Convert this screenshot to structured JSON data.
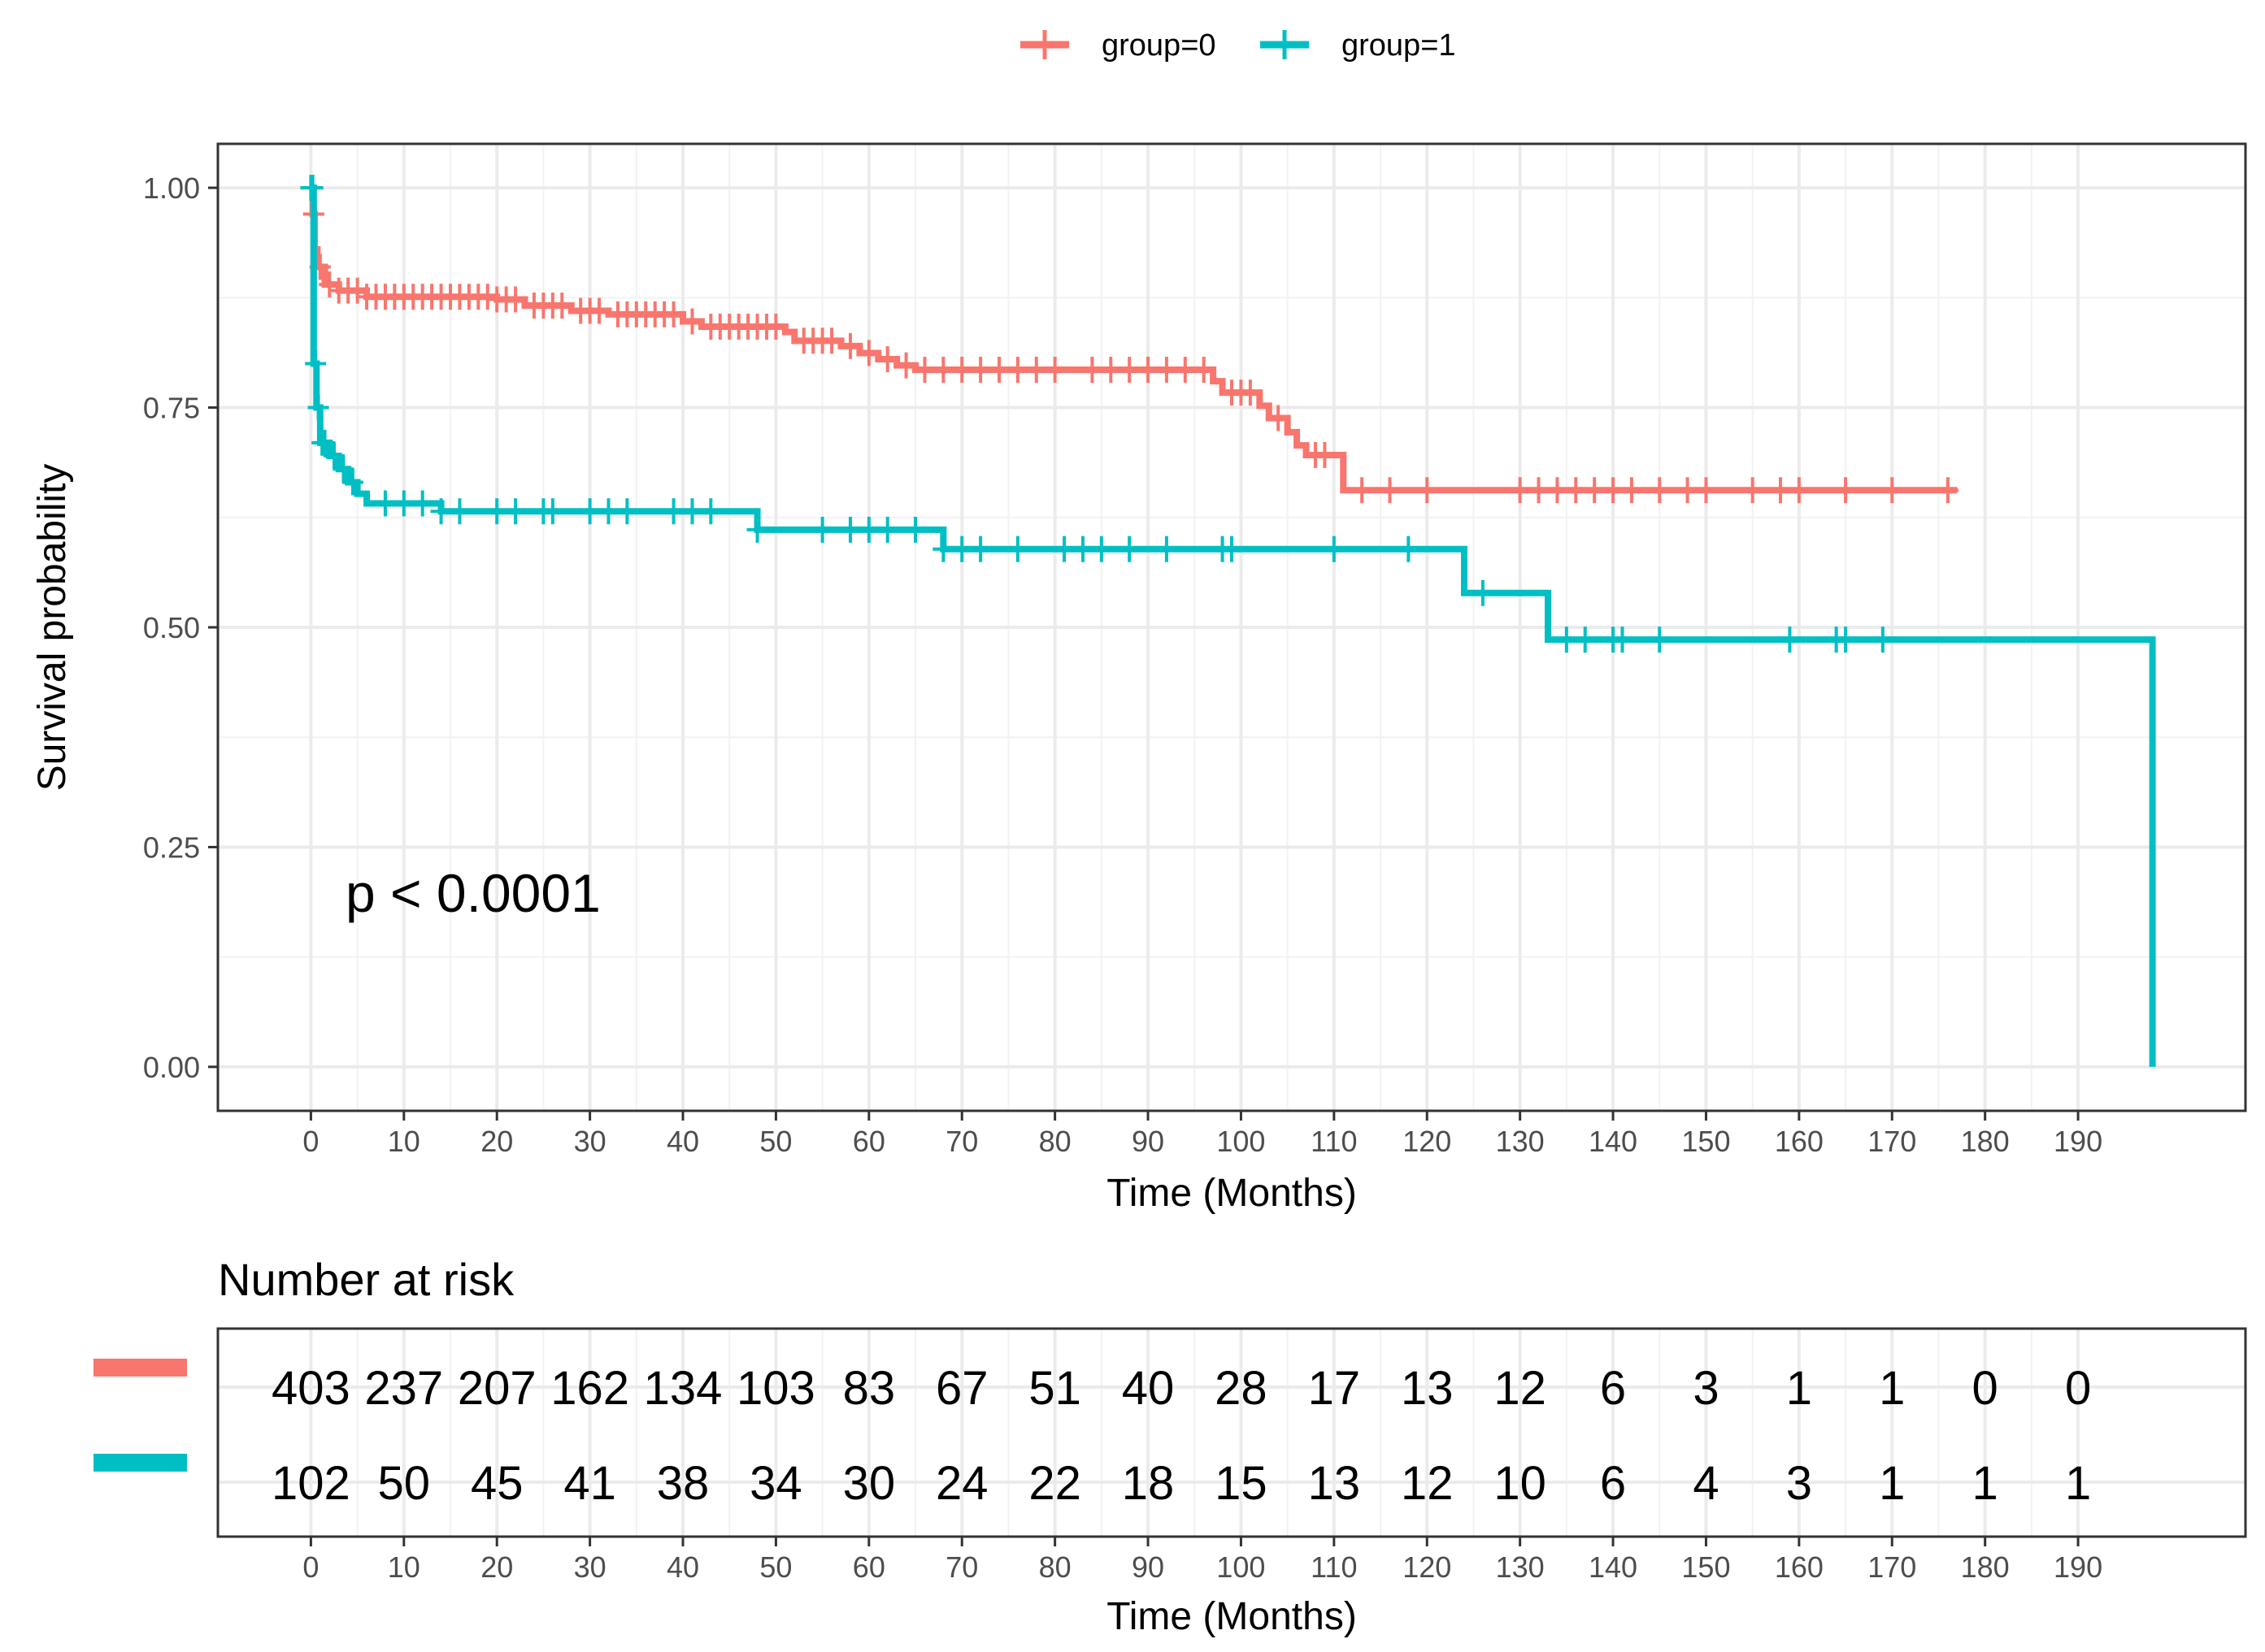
{
  "chart_data": {
    "type": "line",
    "subtype": "kaplan-meier",
    "xlabel": "Time (Months)",
    "ylabel": "Survival probability",
    "xlim": [
      -10,
      208
    ],
    "ylim": [
      -0.05,
      1.05
    ],
    "x_ticks": [
      0,
      10,
      20,
      30,
      40,
      50,
      60,
      70,
      80,
      90,
      100,
      110,
      120,
      130,
      140,
      150,
      160,
      170,
      180,
      190
    ],
    "y_ticks": [
      0,
      0.25,
      0.5,
      0.75,
      1.0
    ],
    "y_tick_labels": [
      "0.00",
      "0.25",
      "0.50",
      "0.75",
      "1.00"
    ],
    "grid": true,
    "legend_position": "top",
    "annotation": "p < 0.0001",
    "series": [
      {
        "name": "group=0",
        "color": "#F8766D",
        "steps": [
          [
            0,
            1.0
          ],
          [
            0.2,
            0.97
          ],
          [
            0.4,
            0.93
          ],
          [
            0.7,
            0.91
          ],
          [
            1.5,
            0.89
          ],
          [
            3,
            0.883
          ],
          [
            6,
            0.876
          ],
          [
            20,
            0.873
          ],
          [
            23,
            0.866
          ],
          [
            28,
            0.86
          ],
          [
            32,
            0.856
          ],
          [
            40,
            0.848
          ],
          [
            42,
            0.842
          ],
          [
            51,
            0.836
          ],
          [
            52,
            0.826
          ],
          [
            57,
            0.82
          ],
          [
            59,
            0.812
          ],
          [
            61,
            0.805
          ],
          [
            63,
            0.798
          ],
          [
            65,
            0.793
          ],
          [
            97,
            0.78
          ],
          [
            98,
            0.767
          ],
          [
            102,
            0.752
          ],
          [
            103,
            0.738
          ],
          [
            105,
            0.722
          ],
          [
            106,
            0.707
          ],
          [
            107,
            0.696
          ],
          [
            111,
            0.656
          ],
          [
            177,
            0.656
          ]
        ],
        "censor_times": [
          0.3,
          1,
          2,
          3,
          4,
          5,
          6,
          7,
          8,
          9,
          10,
          11,
          12,
          13,
          14,
          15,
          16,
          17,
          18,
          19,
          20,
          21,
          22,
          24,
          25,
          26,
          27,
          29,
          30,
          31,
          33,
          34,
          35,
          36,
          37,
          38,
          39,
          41,
          43,
          44,
          45,
          46,
          47,
          48,
          49,
          50,
          53,
          54,
          55,
          56,
          58,
          60,
          62,
          64,
          66,
          68,
          70,
          72,
          74,
          76,
          78,
          80,
          84,
          86,
          88,
          90,
          92,
          94,
          96,
          99,
          100,
          101,
          104,
          108,
          109,
          113,
          116,
          120,
          130,
          132,
          134,
          136,
          138,
          140,
          142,
          145,
          148,
          150,
          155,
          158,
          160,
          165,
          170,
          176
        ]
      },
      {
        "name": "group=1",
        "color": "#00BFC4",
        "steps": [
          [
            0,
            1.0
          ],
          [
            0.3,
            0.8
          ],
          [
            0.6,
            0.75
          ],
          [
            1,
            0.71
          ],
          [
            2,
            0.695
          ],
          [
            3,
            0.68
          ],
          [
            4,
            0.665
          ],
          [
            5,
            0.652
          ],
          [
            6,
            0.641
          ],
          [
            14,
            0.632
          ],
          [
            48,
            0.611
          ],
          [
            68,
            0.589
          ],
          [
            124,
            0.539
          ],
          [
            133,
            0.486
          ],
          [
            198,
            0.486
          ],
          [
            198,
            0.0
          ]
        ],
        "censor_times": [
          0,
          0.2,
          0.5,
          0.8,
          1.2,
          1.5,
          2.5,
          3.5,
          4.5,
          8,
          10,
          12,
          14,
          16,
          20,
          22,
          25,
          26,
          30,
          32,
          34,
          39,
          41,
          43,
          48,
          55,
          58,
          60,
          62,
          65,
          68,
          70,
          72,
          76,
          81,
          83,
          85,
          88,
          92,
          98,
          99,
          110,
          118,
          126,
          135,
          137,
          140,
          141,
          145,
          159,
          164,
          165,
          169
        ]
      }
    ],
    "risk_table": {
      "title": "Number at risk",
      "times": [
        0,
        10,
        20,
        30,
        40,
        50,
        60,
        70,
        80,
        90,
        100,
        110,
        120,
        130,
        140,
        150,
        160,
        170,
        180,
        190
      ],
      "rows": [
        {
          "name": "group=0",
          "color": "#F8766D",
          "values": [
            403,
            237,
            207,
            162,
            134,
            103,
            83,
            67,
            51,
            40,
            28,
            17,
            13,
            12,
            6,
            3,
            1,
            1,
            0,
            0
          ]
        },
        {
          "name": "group=1",
          "color": "#00BFC4",
          "values": [
            102,
            50,
            45,
            41,
            38,
            34,
            30,
            24,
            22,
            18,
            15,
            13,
            12,
            10,
            6,
            4,
            3,
            1,
            1,
            1
          ]
        }
      ]
    }
  }
}
